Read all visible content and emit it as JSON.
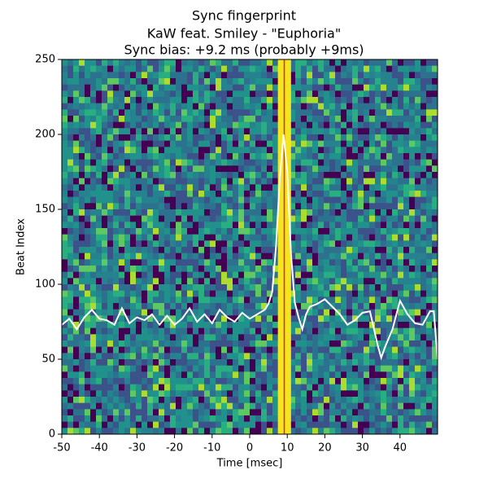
{
  "chart_data": {
    "type": "heatmap_line",
    "title": "Sync fingerprint",
    "subtitle": "KaW feat. Smiley - \"Euphoria\"",
    "annotation": "Sync bias: +9.2 ms (probably +9ms)",
    "xlabel": "Time [msec]",
    "ylabel": "Beat Index",
    "xlim": [
      -50,
      50
    ],
    "ylim": [
      0,
      250
    ],
    "xticks": [
      -50,
      -40,
      -30,
      -20,
      -10,
      0,
      10,
      20,
      30,
      40
    ],
    "yticks": [
      0,
      50,
      100,
      150,
      200,
      250
    ],
    "band": [
      7.5,
      11
    ],
    "band_color": "#f5e51f",
    "vline": 9.2,
    "vline_color": "#d62728",
    "series": [
      {
        "color": "#ffffff",
        "x": [
          -50,
          -48,
          -46,
          -44,
          -42,
          -40,
          -38,
          -36,
          -34,
          -32,
          -30,
          -28,
          -26,
          -24,
          -22,
          -20,
          -18,
          -16,
          -14,
          -12,
          -10,
          -8,
          -6,
          -4,
          -2,
          0,
          2,
          4,
          5,
          6,
          7,
          8,
          9,
          10,
          11,
          12,
          13,
          14,
          15,
          16,
          18,
          20,
          22,
          24,
          26,
          28,
          30,
          32,
          34,
          35,
          36,
          38,
          40,
          42,
          44,
          46,
          48,
          49,
          50
        ],
        "values": [
          73,
          77,
          70,
          78,
          83,
          77,
          76,
          73,
          84,
          74,
          78,
          76,
          80,
          73,
          79,
          73,
          77,
          84,
          75,
          80,
          74,
          83,
          78,
          75,
          81,
          77,
          80,
          83,
          87,
          95,
          125,
          170,
          200,
          175,
          120,
          88,
          78,
          70,
          80,
          85,
          87,
          90,
          85,
          80,
          73,
          76,
          81,
          82,
          60,
          51,
          58,
          70,
          89,
          80,
          74,
          73,
          82,
          82,
          50
        ]
      }
    ]
  }
}
